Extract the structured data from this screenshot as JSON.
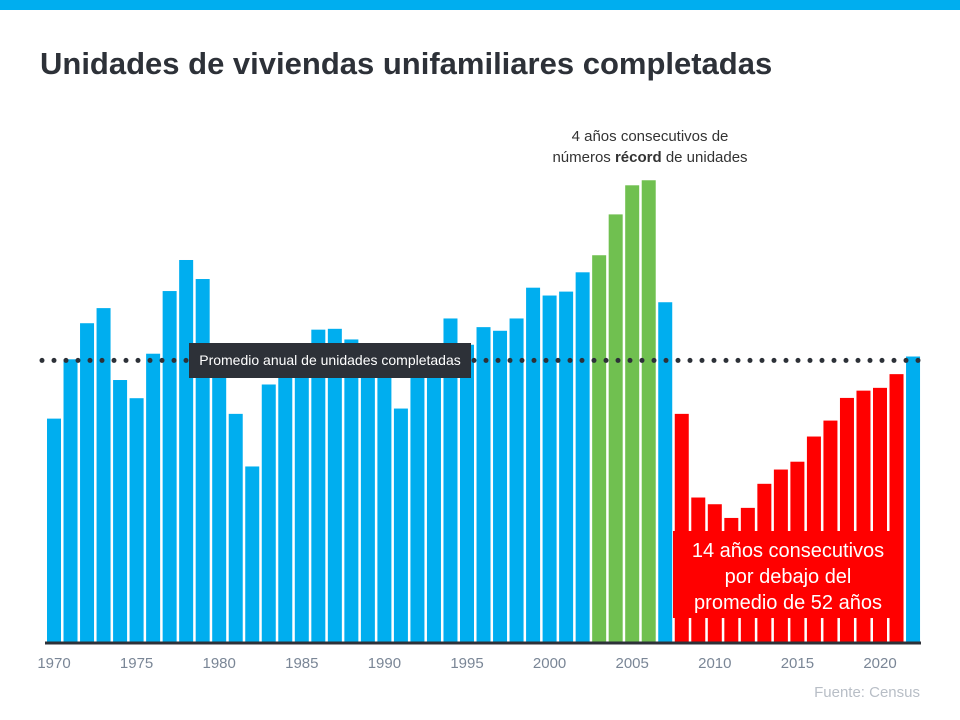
{
  "title": "Unidades de viviendas unifamiliares completadas",
  "source": "Fuente:  Census",
  "colors": {
    "normal": "#00AEEF",
    "record": "#70C050",
    "below_average": "#FF0000",
    "average_line": "#2d3138",
    "top_bar": "#00AEEF"
  },
  "chart_data": {
    "type": "bar",
    "title": "Unidades de viviendas unifamiliares completadas",
    "xlabel": "",
    "ylabel": "",
    "x_tick_labels": [
      "1970",
      "1975",
      "1980",
      "1985",
      "1990",
      "1995",
      "2000",
      "2005",
      "2010",
      "2015",
      "2020"
    ],
    "categories": [
      1970,
      1971,
      1972,
      1973,
      1974,
      1975,
      1976,
      1977,
      1978,
      1979,
      1980,
      1981,
      1982,
      1983,
      1984,
      1985,
      1986,
      1987,
      1988,
      1989,
      1990,
      1991,
      1992,
      1993,
      1994,
      1995,
      1996,
      1997,
      1998,
      1999,
      2000,
      2001,
      2002,
      2003,
      2004,
      2005,
      2006,
      2007,
      2008,
      2009,
      2010,
      2011,
      2012,
      2013,
      2014,
      2015,
      2016,
      2017,
      2018,
      2019,
      2020,
      2021,
      2022
    ],
    "values": [
      802,
      1014,
      1143,
      1197,
      940,
      875,
      1034,
      1258,
      1369,
      1301,
      957,
      819,
      631,
      924,
      1025,
      1072,
      1120,
      1123,
      1085,
      1026,
      966,
      838,
      964,
      1039,
      1160,
      1066,
      1129,
      1116,
      1160,
      1270,
      1242,
      1256,
      1325,
      1386,
      1532,
      1636,
      1654,
      1218,
      819,
      520,
      496,
      447,
      483,
      569,
      620,
      648,
      738,
      795,
      876,
      902,
      912,
      961,
      1024
    ],
    "highlight_record_years": [
      2003,
      2004,
      2005,
      2006
    ],
    "highlight_below_years": [
      2008,
      2009,
      2010,
      2011,
      2012,
      2013,
      2014,
      2015,
      2016,
      2017,
      2018,
      2019,
      2020,
      2021
    ],
    "average_value": 1010,
    "ylim": [
      0,
      1700
    ],
    "grid": false,
    "annotations": {
      "average_label": "Promedio anual de unidades completadas",
      "record_line1": "4 años consecutivos de",
      "record_line2_pre": "números ",
      "record_line2_bold": "récord",
      "record_line2_post": " de unidades",
      "below_line1": "14 años consecutivos",
      "below_line2": "por debajo del",
      "below_line3": "promedio de 52 años"
    }
  }
}
